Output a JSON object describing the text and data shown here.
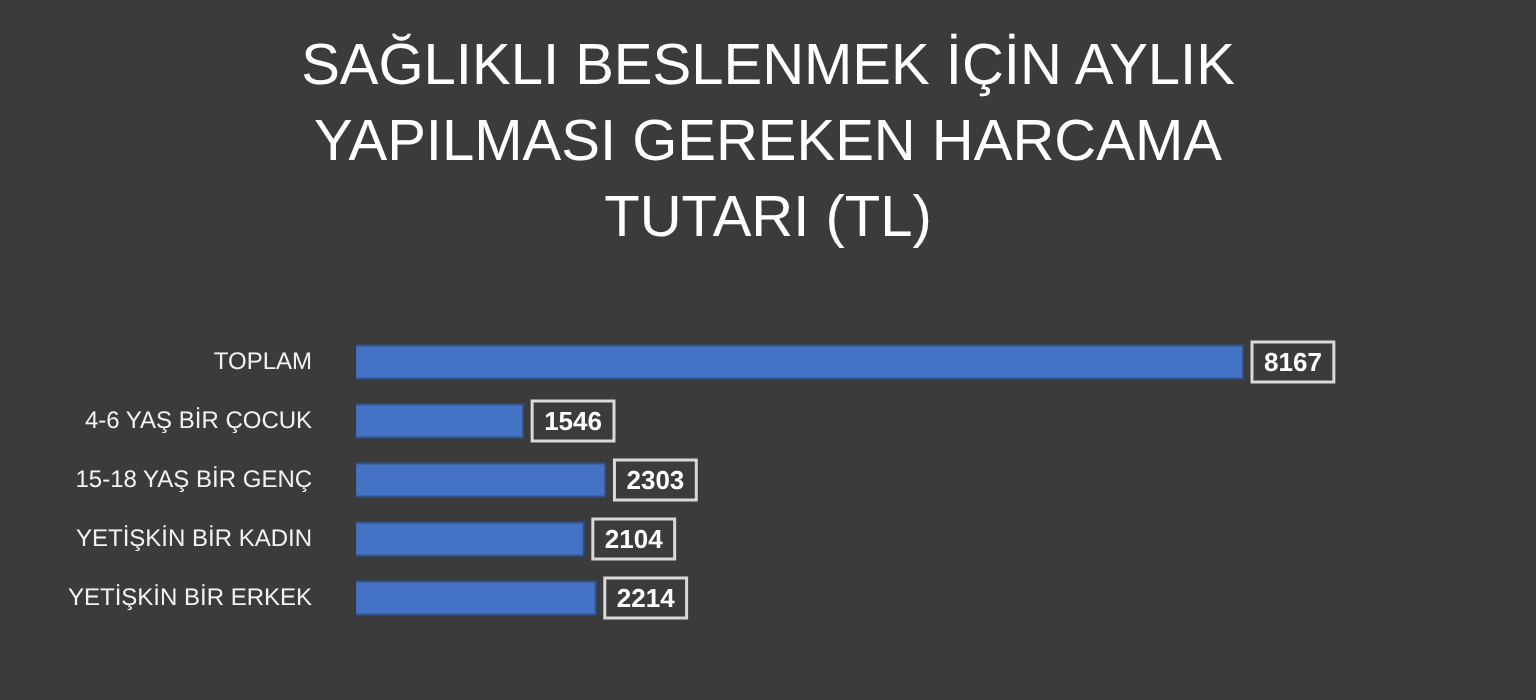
{
  "chart_data": {
    "type": "bar",
    "orientation": "horizontal",
    "title": "SAĞLIKLI BESLENMEK İÇİN AYLIK YAPILMASI GEREKEN HARCAMA TUTARI (TL)",
    "categories": [
      "TOPLAM",
      "4-6 YAŞ BİR ÇOCUK",
      "15-18 YAŞ BİR GENÇ",
      "YETİŞKİN BİR KADIN",
      "YETİŞKİN BİR ERKEK"
    ],
    "values": [
      8167,
      1546,
      2303,
      2104,
      2214
    ],
    "color": "#4472c4",
    "data_labels": true,
    "legend": false
  }
}
